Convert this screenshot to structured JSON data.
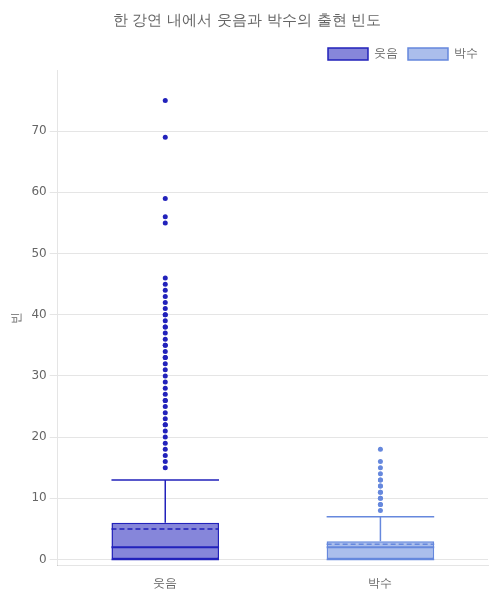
{
  "chart_data": {
    "type": "box",
    "title": "한 강연 내에서 웃음과 박수의 출현 빈도",
    "ylabel": "빈",
    "categories": [
      "웃음",
      "박수"
    ],
    "series": [
      {
        "name": "웃음",
        "color": "#2222BB",
        "q1": 0,
        "median": 2,
        "q3": 6,
        "mean": 5,
        "whisker_low": 0,
        "whisker_high": 13,
        "outliers": [
          15,
          16,
          17,
          18,
          19,
          20,
          21,
          22,
          22,
          23,
          24,
          25,
          26,
          26,
          27,
          28,
          29,
          30,
          31,
          32,
          33,
          33,
          34,
          35,
          35,
          36,
          37,
          38,
          38,
          39,
          40,
          40,
          41,
          42,
          43,
          44,
          45,
          46,
          55,
          56,
          59,
          69,
          75
        ]
      },
      {
        "name": "박수",
        "color": "#6688DD",
        "q1": 0,
        "median": 2,
        "q3": 3,
        "mean": 2.5,
        "whisker_low": 0,
        "whisker_high": 7,
        "outliers": [
          8,
          9,
          9,
          10,
          10,
          11,
          11,
          12,
          12,
          13,
          13,
          14,
          15,
          16,
          18
        ]
      }
    ],
    "ylim": [
      -1,
      80
    ],
    "yticks": [
      0,
      10,
      20,
      30,
      40,
      50,
      60,
      70
    ],
    "grid": true,
    "legend": "upper right"
  }
}
